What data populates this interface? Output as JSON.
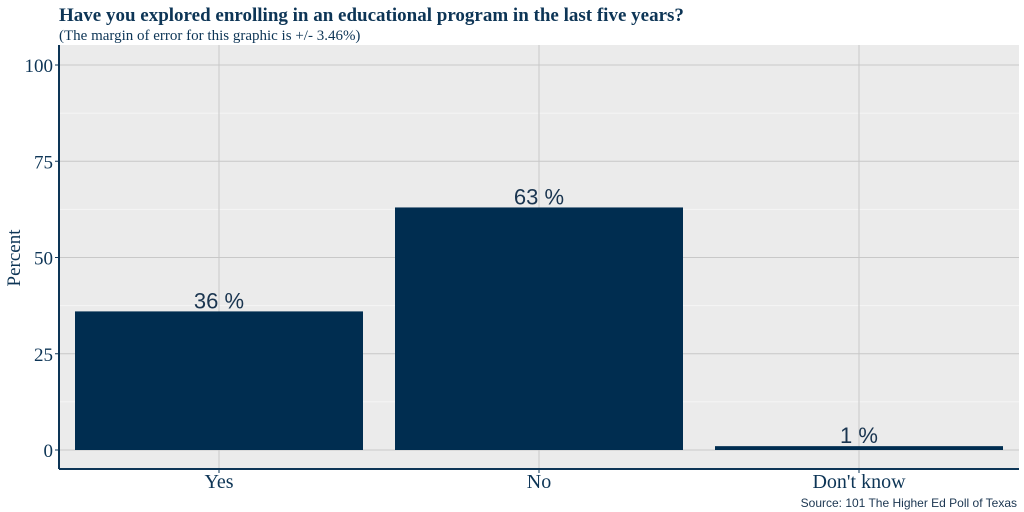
{
  "colors": {
    "bar": "#002d50",
    "panel": "#ebebeb",
    "grid_major": "#c8c8c8",
    "grid_minor": "#f5f5f5",
    "axis": "#0d3556"
  },
  "chart_data": {
    "type": "bar",
    "title": "Have you explored enrolling in an educational program in the last five years?",
    "subtitle": "(The margin of error for this graphic is +/- 3.46%)",
    "categories": [
      "Yes",
      "No",
      "Don't know"
    ],
    "values": [
      36,
      63,
      1
    ],
    "data_labels": [
      "36 %",
      "63 %",
      "1 %"
    ],
    "xlabel": "",
    "ylabel": "Percent",
    "ylim": [
      0,
      100
    ],
    "yticks": [
      "0",
      "25",
      "50",
      "75",
      "100"
    ],
    "grid": true,
    "legend": "none",
    "source": "Source: 101 The Higher Ed Poll of Texas"
  }
}
